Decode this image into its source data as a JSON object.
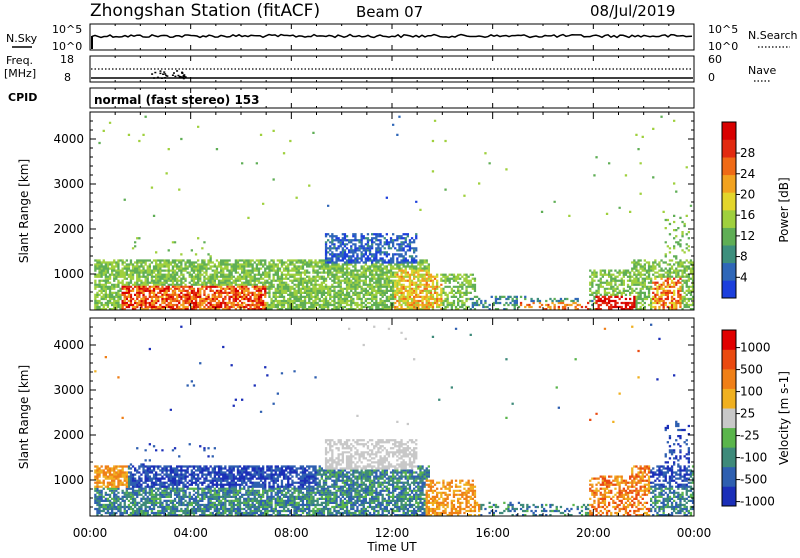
{
  "header": {
    "station": "Zhongshan Station (fitACF)",
    "beam": "Beam 07",
    "date": "08/Jul/2019"
  },
  "panels": {
    "nsky": {
      "left_label": "N.Sky",
      "left_ticks": [
        "10^5",
        "10^0"
      ],
      "right_ticks": [
        "10^5",
        "10^0"
      ],
      "right_label": "N.Search"
    },
    "freq": {
      "left_label": "Freq.",
      "left_unit": "[MHz]",
      "left_ticks": [
        "18",
        "8"
      ],
      "right_ticks": [
        "60",
        "0"
      ],
      "right_label": "Nave"
    },
    "cpid": {
      "label": "CPID",
      "text": "normal (fast stereo) 153"
    }
  },
  "chart_data": [
    {
      "type": "heatmap",
      "name": "power",
      "ylabel": "Slant Range [km]",
      "xlabel": "",
      "y_ticks": [
        1000,
        2000,
        3000,
        4000
      ],
      "ylim": [
        200,
        4600
      ],
      "x_ticks": [
        "00:00",
        "04:00",
        "08:00",
        "12:00",
        "16:00",
        "20:00",
        "00:00"
      ],
      "xlim_hours": [
        0,
        24
      ],
      "colorbar": {
        "label": "Power [dB]",
        "ticks": [
          "4",
          "8",
          "12",
          "16",
          "20",
          "24",
          "28"
        ],
        "colors": [
          "#1c3fdc",
          "#2f67b8",
          "#3d8f7d",
          "#5fae55",
          "#9fd03d",
          "#e3d52b",
          "#f2a21f",
          "#ef6a16",
          "#e22a10",
          "#d80000"
        ]
      }
    },
    {
      "type": "heatmap",
      "name": "velocity",
      "ylabel": "Slant Range [km]",
      "xlabel": "Time UT",
      "y_ticks": [
        1000,
        2000,
        3000,
        4000
      ],
      "ylim": [
        200,
        4600
      ],
      "x_ticks": [
        "00:00",
        "04:00",
        "08:00",
        "12:00",
        "16:00",
        "20:00",
        "00:00"
      ],
      "xlim_hours": [
        0,
        24
      ],
      "colorbar": {
        "label": "Velocity [m s-1]",
        "ticks": [
          "1000",
          "500",
          "100",
          "25",
          "-25",
          "-100",
          "-500",
          "-1000"
        ],
        "colors": [
          "#1b2fb8",
          "#2e5fb0",
          "#3e8a7a",
          "#5ab54b",
          "#c8c8c8",
          "#f0b020",
          "#ef7f17",
          "#ea4a10",
          "#e00000"
        ]
      }
    }
  ]
}
